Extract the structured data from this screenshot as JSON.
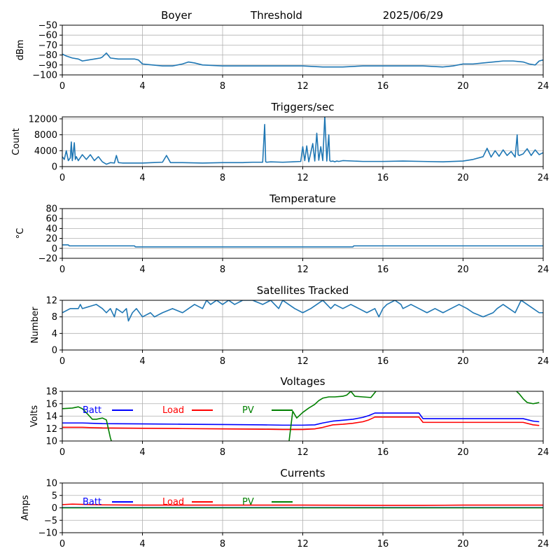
{
  "header": {
    "station": "Boyer",
    "mode": "Threshold",
    "date": "2025/06/29"
  },
  "colors": {
    "series_default": "#1f77b4",
    "batt": "#0000ff",
    "load": "#ff0000",
    "pv": "#008000",
    "grid": "#b0b0b0"
  },
  "chart_data": [
    {
      "type": "line",
      "title": "",
      "xlabel": "",
      "ylabel": "dBm",
      "xlim": [
        0,
        24
      ],
      "xticks": [
        0,
        4,
        8,
        12,
        16,
        20,
        24
      ],
      "ylim": [
        -100,
        -50
      ],
      "yticks": [
        -100,
        -90,
        -80,
        -70,
        -60,
        -50
      ],
      "grid": true,
      "series": [
        {
          "x": [
            0,
            0.2,
            0.5,
            0.8,
            1.0,
            1.3,
            1.6,
            1.9,
            2.0,
            2.1,
            2.2,
            2.4,
            2.8,
            3.2,
            3.6,
            3.8,
            4.0,
            4.5,
            5.0,
            5.5,
            6.0,
            6.3,
            6.6,
            7.0,
            8.0,
            9.0,
            10.0,
            11.0,
            12.0,
            13.0,
            14.0,
            15.0,
            16.0,
            17.0,
            18.0,
            19.0,
            19.5,
            20.0,
            20.5,
            21.0,
            21.5,
            22.0,
            22.5,
            23.0,
            23.3,
            23.6,
            23.8,
            24.0
          ],
          "y": [
            -79,
            -81,
            -83,
            -84,
            -86,
            -85,
            -84,
            -83,
            -82,
            -80,
            -78,
            -83,
            -84,
            -84,
            -84,
            -85,
            -89,
            -90,
            -91,
            -91,
            -89,
            -87,
            -88,
            -90,
            -91,
            -91,
            -91,
            -91,
            -91,
            -92,
            -92,
            -91,
            -91,
            -91,
            -91,
            -92,
            -91,
            -89,
            -89,
            -88,
            -87,
            -86,
            -86,
            -87,
            -89,
            -90,
            -86,
            -85
          ]
        }
      ]
    },
    {
      "type": "line",
      "title": "Triggers/sec",
      "xlabel": "",
      "ylabel": "Count",
      "xlim": [
        0,
        24
      ],
      "xticks": [
        0,
        4,
        8,
        12,
        16,
        20,
        24
      ],
      "ylim": [
        0,
        12500
      ],
      "yticks": [
        0,
        4000,
        8000,
        12000
      ],
      "grid": true,
      "series": [
        {
          "x": [
            0,
            0.1,
            0.2,
            0.3,
            0.4,
            0.45,
            0.5,
            0.6,
            0.65,
            0.7,
            0.8,
            1.0,
            1.2,
            1.4,
            1.6,
            1.8,
            2.0,
            2.2,
            2.4,
            2.6,
            2.7,
            2.8,
            3.0,
            3.5,
            4.0,
            4.5,
            5.0,
            5.2,
            5.4,
            6.0,
            7.0,
            8.0,
            9.0,
            9.5,
            10.0,
            10.1,
            10.15,
            10.2,
            10.4,
            11.0,
            11.5,
            11.9,
            12.0,
            12.1,
            12.2,
            12.3,
            12.5,
            12.6,
            12.7,
            12.8,
            12.9,
            13.0,
            13.1,
            13.2,
            13.3,
            13.35,
            13.4,
            13.5,
            13.6,
            13.7,
            13.8,
            14.0,
            15.0,
            16.0,
            17.0,
            18.0,
            19.0,
            20.0,
            20.5,
            21.0,
            21.2,
            21.4,
            21.6,
            21.8,
            22.0,
            22.2,
            22.4,
            22.6,
            22.7,
            22.75,
            22.8,
            23.0,
            23.2,
            23.4,
            23.6,
            23.8,
            24.0
          ],
          "y": [
            2500,
            1800,
            4000,
            1500,
            2200,
            6200,
            1500,
            6000,
            1800,
            2500,
            1500,
            3000,
            1800,
            3000,
            1500,
            2500,
            1200,
            600,
            1000,
            900,
            2800,
            1000,
            900,
            900,
            900,
            1000,
            1100,
            2800,
            1000,
            1000,
            900,
            1000,
            1000,
            1100,
            1100,
            10600,
            1200,
            1100,
            1200,
            1100,
            1200,
            1300,
            5000,
            1500,
            5200,
            1200,
            5800,
            1400,
            8400,
            1600,
            5000,
            1500,
            12800,
            1400,
            8000,
            1500,
            1300,
            1400,
            1200,
            1400,
            1300,
            1500,
            1300,
            1300,
            1400,
            1300,
            1200,
            1400,
            1800,
            2500,
            4600,
            2400,
            4000,
            2600,
            4200,
            2800,
            3800,
            2400,
            8000,
            3000,
            2800,
            3200,
            4500,
            2800,
            4200,
            3000,
            3500
          ]
        }
      ]
    },
    {
      "type": "line",
      "title": "Temperature",
      "xlabel": "",
      "ylabel": "°C",
      "xlim": [
        0,
        24
      ],
      "xticks": [
        0,
        4,
        8,
        12,
        16,
        20,
        24
      ],
      "ylim": [
        -20,
        80
      ],
      "yticks": [
        -20,
        0,
        20,
        40,
        60,
        80
      ],
      "grid": true,
      "series": [
        {
          "x": [
            0,
            0.3,
            0.35,
            3.6,
            3.65,
            14.5,
            14.55,
            24
          ],
          "y": [
            7,
            7,
            5,
            5,
            3,
            3,
            5,
            5
          ]
        }
      ]
    },
    {
      "type": "line",
      "title": "Satellites Tracked",
      "xlabel": "",
      "ylabel": "Number",
      "xlim": [
        0,
        24
      ],
      "xticks": [
        0,
        4,
        8,
        12,
        16,
        20,
        24
      ],
      "ylim": [
        0,
        12
      ],
      "yticks": [
        0,
        4,
        8,
        12
      ],
      "grid": true,
      "series": [
        {
          "x": [
            0,
            0.4,
            0.8,
            0.9,
            1.0,
            1.7,
            2.0,
            2.2,
            2.4,
            2.6,
            2.7,
            3.0,
            3.2,
            3.3,
            3.5,
            3.7,
            4.0,
            4.4,
            4.6,
            5.0,
            5.5,
            6.0,
            6.3,
            6.6,
            7.0,
            7.2,
            7.4,
            7.7,
            8.0,
            8.3,
            8.6,
            9.0,
            9.5,
            10.0,
            10.4,
            10.6,
            10.8,
            11.0,
            11.3,
            11.6,
            12.0,
            12.4,
            12.7,
            13.0,
            13.2,
            13.4,
            13.6,
            14.0,
            14.4,
            14.8,
            15.2,
            15.6,
            15.8,
            16.0,
            16.2,
            16.6,
            16.9,
            17.0,
            17.4,
            17.8,
            18.2,
            18.6,
            19.0,
            19.4,
            19.8,
            20.2,
            20.5,
            21.0,
            21.5,
            21.7,
            22.0,
            22.3,
            22.6,
            22.9,
            23.2,
            23.5,
            23.8,
            24.0
          ],
          "y": [
            9,
            10,
            10,
            11,
            10,
            11,
            10,
            9,
            10,
            8,
            10,
            9,
            10,
            7,
            9,
            10,
            8,
            9,
            8,
            9,
            10,
            9,
            10,
            11,
            10,
            12,
            11,
            12,
            11,
            12,
            11,
            12,
            12,
            11,
            12,
            11,
            10,
            12,
            11,
            10,
            9,
            10,
            11,
            12,
            11,
            10,
            11,
            10,
            11,
            10,
            9,
            10,
            8,
            10,
            11,
            12,
            11,
            10,
            11,
            10,
            9,
            10,
            9,
            10,
            11,
            10,
            9,
            8,
            9,
            10,
            11,
            10,
            9,
            12,
            11,
            10,
            9,
            9
          ]
        }
      ]
    },
    {
      "type": "line",
      "title": "Voltages",
      "xlabel": "",
      "ylabel": "Volts",
      "xlim": [
        0,
        24
      ],
      "xticks": [
        0,
        4,
        8,
        12,
        16,
        20,
        24
      ],
      "ylim": [
        10,
        18
      ],
      "yticks": [
        10,
        12,
        14,
        16,
        18
      ],
      "grid": true,
      "legend": {
        "placement": "top-left",
        "orientation": "horizontal"
      },
      "series": [
        {
          "name": "Batt",
          "color_key": "batt",
          "x": [
            0,
            1.0,
            2.0,
            4.0,
            6.0,
            8.0,
            10.0,
            11.0,
            12.0,
            12.6,
            13.0,
            13.5,
            14.0,
            14.5,
            15.0,
            15.3,
            15.6,
            16.0,
            17.0,
            17.8,
            18.0,
            19.0,
            20.0,
            21.0,
            22.0,
            23.0,
            23.5,
            23.8
          ],
          "y": [
            12.9,
            12.9,
            12.8,
            12.75,
            12.7,
            12.65,
            12.6,
            12.55,
            12.55,
            12.6,
            12.9,
            13.2,
            13.35,
            13.5,
            13.8,
            14.1,
            14.5,
            14.5,
            14.5,
            14.5,
            13.6,
            13.6,
            13.6,
            13.6,
            13.6,
            13.6,
            13.2,
            13.1
          ]
        },
        {
          "name": "Load",
          "color_key": "load",
          "x": [
            0,
            1.0,
            2.0,
            4.0,
            6.0,
            8.0,
            10.0,
            11.0,
            12.0,
            12.6,
            13.0,
            13.5,
            14.0,
            14.5,
            15.0,
            15.3,
            15.6,
            16.0,
            17.0,
            17.8,
            18.0,
            19.0,
            20.0,
            21.0,
            22.0,
            23.0,
            23.5,
            23.8
          ],
          "y": [
            12.2,
            12.2,
            12.1,
            12.05,
            12.0,
            11.95,
            11.9,
            11.85,
            11.85,
            11.95,
            12.2,
            12.6,
            12.7,
            12.85,
            13.1,
            13.4,
            13.85,
            13.85,
            13.85,
            13.85,
            13.0,
            13.0,
            13.0,
            13.0,
            13.0,
            13.0,
            12.6,
            12.5
          ]
        },
        {
          "name": "PV",
          "color_key": "pv",
          "x": [
            0,
            0.5,
            0.8,
            1.0,
            1.3,
            1.5,
            1.7,
            2.0,
            2.2,
            2.4,
            2.5,
            2.6,
            11.3,
            11.5,
            11.7,
            12.0,
            12.3,
            12.6,
            12.8,
            13.0,
            13.3,
            13.6,
            14.0,
            14.2,
            14.4,
            14.6,
            15.0,
            15.4,
            15.7,
            22.6,
            22.8,
            23.0,
            23.2,
            23.5,
            23.8
          ],
          "y": [
            15.2,
            15.3,
            15.5,
            15.2,
            14.2,
            13.5,
            13.5,
            13.7,
            13.4,
            10.5,
            9.5,
            9.5,
            9.5,
            14.8,
            13.7,
            14.6,
            15.3,
            15.9,
            16.5,
            16.9,
            17.1,
            17.1,
            17.2,
            17.4,
            18.0,
            17.2,
            17.1,
            17.0,
            18.2,
            18.2,
            17.6,
            16.8,
            16.2,
            16.0,
            16.2
          ]
        }
      ]
    },
    {
      "type": "line",
      "title": "Currents",
      "xlabel": "",
      "ylabel": "Amps",
      "xlim": [
        0,
        24
      ],
      "xticks": [
        0,
        4,
        8,
        12,
        16,
        20,
        24
      ],
      "ylim": [
        -10,
        10
      ],
      "yticks": [
        -10,
        -5,
        0,
        5,
        10
      ],
      "grid": true,
      "legend": {
        "placement": "top-left",
        "orientation": "horizontal"
      },
      "series": [
        {
          "name": "Batt",
          "color_key": "batt",
          "x": [
            0,
            4,
            8,
            12,
            16,
            20,
            24
          ],
          "y": [
            0.1,
            0.1,
            0.1,
            0.1,
            0.1,
            0.1,
            0.1
          ]
        },
        {
          "name": "Load",
          "color_key": "load",
          "x": [
            0,
            0.5,
            1.0,
            2.0,
            4.0,
            8.0,
            12.0,
            16.0,
            18.0,
            20.0,
            24.0
          ],
          "y": [
            1.3,
            1.5,
            1.4,
            1.2,
            1.1,
            1.1,
            1.1,
            1.0,
            1.0,
            1.1,
            1.1
          ]
        },
        {
          "name": "PV",
          "color_key": "pv",
          "x": [
            0,
            4,
            8,
            12,
            16,
            20,
            24
          ],
          "y": [
            0,
            0,
            0,
            0,
            0,
            0,
            0
          ]
        }
      ]
    }
  ]
}
